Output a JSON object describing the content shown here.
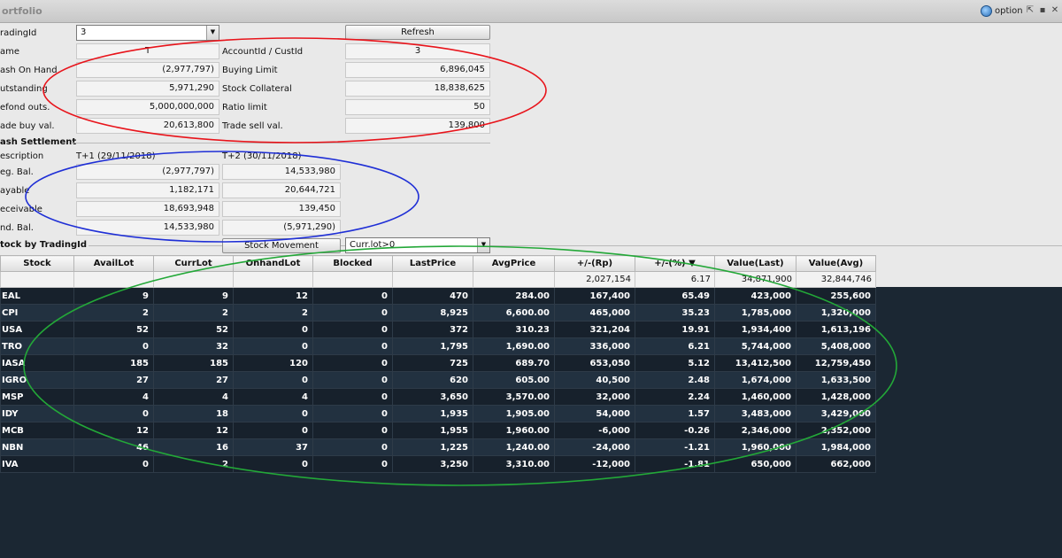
{
  "window": {
    "title": "ortfolio",
    "option_label": "option",
    "buttons": [
      "⇱",
      "▪",
      "✕"
    ]
  },
  "form": {
    "tradingid_label": "radingId",
    "tradingid_value": "3",
    "refresh_label": "Refresh",
    "name_label": "ame",
    "name_value": "T",
    "accountid_label": "AccountId / CustId",
    "accountid_value": "3",
    "cash_on_hand_label": "ash On Hand",
    "cash_on_hand_value": "(2,977,797)",
    "buying_limit_label": "Buying Limit",
    "buying_limit_value": "6,896,045",
    "outstanding_label": "utstanding",
    "outstanding_value": "5,971,290",
    "stock_collateral_label": "Stock Collateral",
    "stock_collateral_value": "18,838,625",
    "refond_label": "efond outs.",
    "refond_value": "5,000,000,000",
    "ratio_limit_label": "Ratio limit",
    "ratio_limit_value": "50",
    "trade_buy_label": "ade buy val.",
    "trade_buy_value": "20,613,800",
    "trade_sell_label": "Trade sell val.",
    "trade_sell_value": "139,800"
  },
  "settlement": {
    "section_title": "ash Settlement",
    "description_label": "escription",
    "t1_header": "T+1  (29/11/2018)",
    "t2_header": "T+2  (30/11/2018)",
    "rows": [
      {
        "label": "eg. Bal.",
        "t1": "(2,977,797)",
        "t2": "14,533,980"
      },
      {
        "label": "ayable",
        "t1": "1,182,171",
        "t2": "20,644,721"
      },
      {
        "label": "eceivable",
        "t1": "18,693,948",
        "t2": "139,450"
      },
      {
        "label": "nd. Bal.",
        "t1": "14,533,980",
        "t2": "(5,971,290)"
      }
    ]
  },
  "stock_section": {
    "title": "tock by TradingId",
    "movement_button": "Stock Movement",
    "filter_value": "Curr.lot>0"
  },
  "grid": {
    "columns": [
      "Stock",
      "AvailLot",
      "CurrLot",
      "OnhandLot",
      "Blocked",
      "LastPrice",
      "AvgPrice",
      "+/-(Rp)",
      "+/-(%)",
      "Value(Last)",
      "Value(Avg)"
    ],
    "totals": [
      "",
      "",
      "",
      "",
      "",
      "",
      "",
      "2,027,154",
      "6.17",
      "34,871,900",
      "32,844,746"
    ],
    "rows": [
      [
        "EAL",
        "9",
        "9",
        "12",
        "0",
        "470",
        "284.00",
        "167,400",
        "65.49",
        "423,000",
        "255,600"
      ],
      [
        "CPI",
        "2",
        "2",
        "2",
        "0",
        "8,925",
        "6,600.00",
        "465,000",
        "35.23",
        "1,785,000",
        "1,320,000"
      ],
      [
        "USA",
        "52",
        "52",
        "0",
        "0",
        "372",
        "310.23",
        "321,204",
        "19.91",
        "1,934,400",
        "1,613,196"
      ],
      [
        "TRO",
        "0",
        "32",
        "0",
        "0",
        "1,795",
        "1,690.00",
        "336,000",
        "6.21",
        "5,744,000",
        "5,408,000"
      ],
      [
        "IASA",
        "185",
        "185",
        "120",
        "0",
        "725",
        "689.70",
        "653,050",
        "5.12",
        "13,412,500",
        "12,759,450"
      ],
      [
        "IGRO",
        "27",
        "27",
        "0",
        "0",
        "620",
        "605.00",
        "40,500",
        "2.48",
        "1,674,000",
        "1,633,500"
      ],
      [
        "MSP",
        "4",
        "4",
        "4",
        "0",
        "3,650",
        "3,570.00",
        "32,000",
        "2.24",
        "1,460,000",
        "1,428,000"
      ],
      [
        "IDY",
        "0",
        "18",
        "0",
        "0",
        "1,935",
        "1,905.00",
        "54,000",
        "1.57",
        "3,483,000",
        "3,429,000"
      ],
      [
        "MCB",
        "12",
        "12",
        "0",
        "0",
        "1,955",
        "1,960.00",
        "-6,000",
        "-0.26",
        "2,346,000",
        "2,352,000"
      ],
      [
        "NBN",
        "46",
        "16",
        "37",
        "0",
        "1,225",
        "1,240.00",
        "-24,000",
        "-1.21",
        "1,960,000",
        "1,984,000"
      ],
      [
        "IVA",
        "0",
        "2",
        "0",
        "0",
        "3,250",
        "3,310.00",
        "-12,000",
        "-1.81",
        "650,000",
        "662,000"
      ]
    ]
  },
  "annotation_colors": {
    "red": "#e8141b",
    "blue": "#1f2fd6",
    "green": "#23a838"
  }
}
